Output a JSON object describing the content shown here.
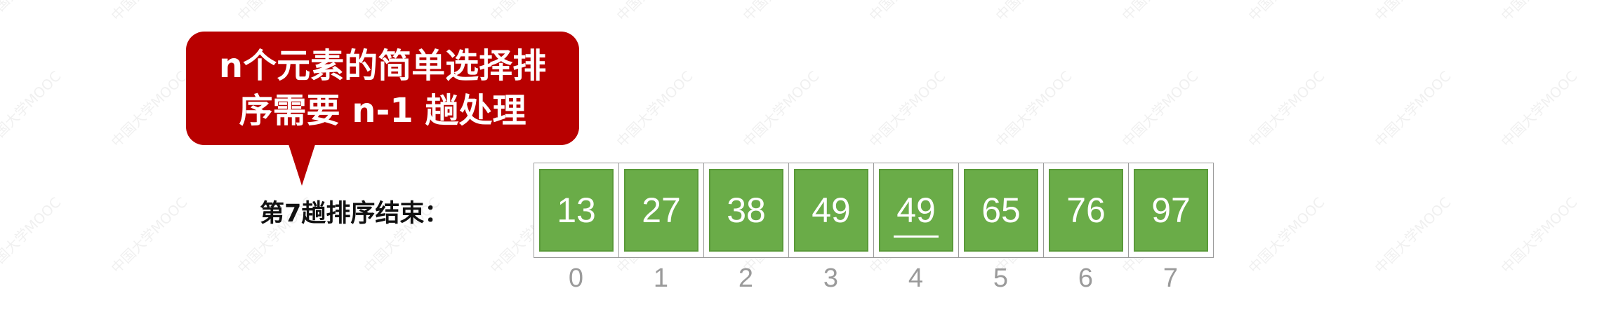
{
  "callout": {
    "line1": "n个元素的简单选择排",
    "line2": "序需要 n-1 趟处理"
  },
  "row_label": "第7趟排序结束：",
  "array": {
    "values": [
      "13",
      "27",
      "38",
      "49",
      "49",
      "65",
      "76",
      "97"
    ],
    "underlined_index": 4,
    "indices": [
      "0",
      "1",
      "2",
      "3",
      "4",
      "5",
      "6",
      "7"
    ]
  },
  "watermark": "中国大学MOOC",
  "colors": {
    "callout_bg": "#b80000",
    "cell_fill": "#6aac48",
    "index_text": "#9a9a9a"
  }
}
